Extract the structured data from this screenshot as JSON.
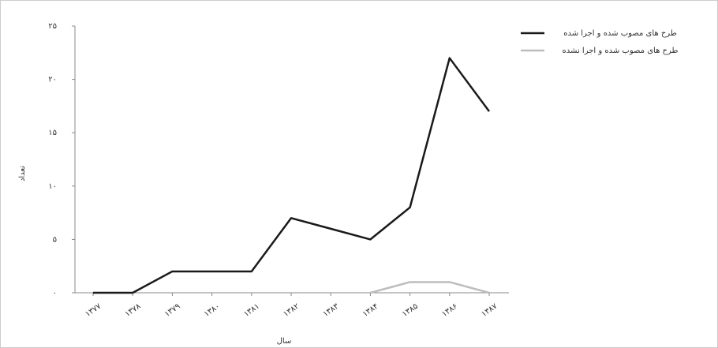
{
  "chart_data": {
    "type": "line",
    "x_label": "سال",
    "y_label": "تعداد",
    "categories": [
      "۱۳۷۷",
      "۱۳۷۸",
      "۱۳۷۹",
      "۱۳۸۰",
      "۱۳۸۱",
      "۱۳۸۲",
      "۱۳۸۳",
      "۱۳۸۴",
      "۱۳۸۵",
      "۱۳۸۶",
      "۱۳۸۷"
    ],
    "series": [
      {
        "name": "طرح های مصوب شده  و اجرا شده",
        "color": "#1a1a1a",
        "values": [
          0,
          0,
          2,
          2,
          2,
          7,
          6,
          5,
          8,
          22,
          17
        ]
      },
      {
        "name": "طرح های مصوب شده  و اجرا نشده",
        "color": "#bdbdbd",
        "values": [
          null,
          null,
          null,
          null,
          null,
          null,
          null,
          0,
          1,
          1,
          0
        ]
      }
    ],
    "ylim": [
      0,
      25
    ],
    "yticks": [
      {
        "value": 0,
        "label": "۰"
      },
      {
        "value": 5,
        "label": "۵"
      },
      {
        "value": 10,
        "label": "۱۰"
      },
      {
        "value": 15,
        "label": "۱۵"
      },
      {
        "value": 20,
        "label": "۲۰"
      },
      {
        "value": 25,
        "label": "۲۵"
      }
    ],
    "legend": "top-right",
    "grid": false
  }
}
